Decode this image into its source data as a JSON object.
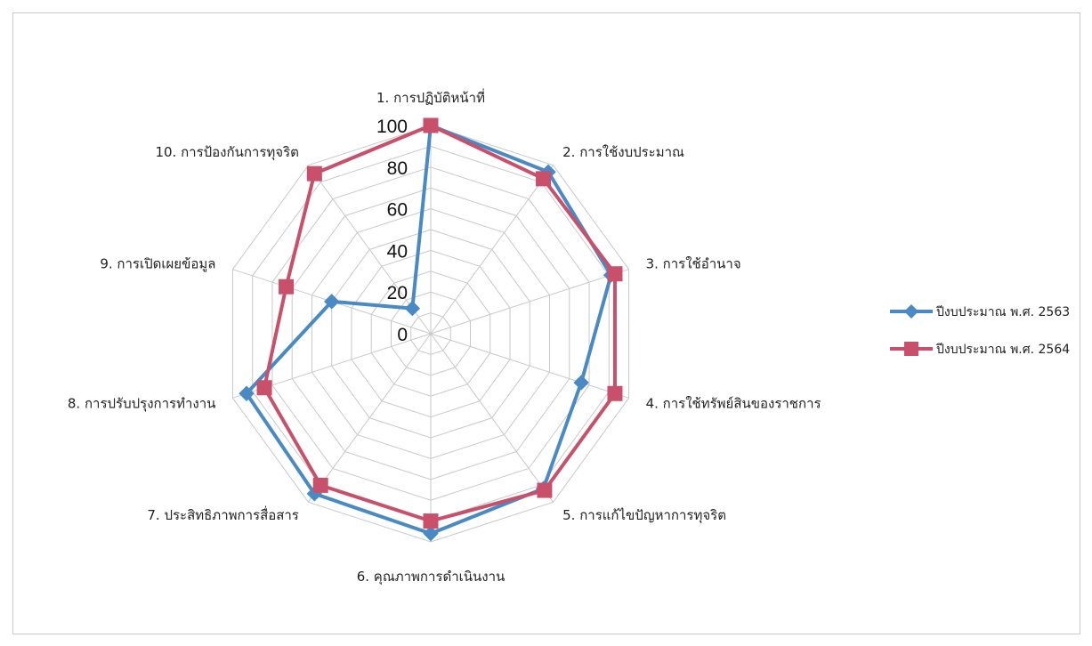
{
  "chart_data": {
    "type": "radar",
    "categories": [
      "1. การปฏิบัติหน้าที่",
      "2. การใช้งบประมาณ",
      "3. การใช้อำนาจ",
      "4. การใช้ทรัพย์สินของราชการ",
      "5. การแก้ไขปัญหาการทุจริต",
      "6. คุณภาพการดำเนินงาน",
      "7. ประสิทธิภาพการสื่อสาร",
      "8. การปรับปรุงการทำงาน",
      "9. การเปิดเผยข้อมูล",
      "10. การป้องกันการทุจริต"
    ],
    "series": [
      {
        "name": "ปีงบประมาณ พ.ศ. 2563",
        "values": [
          100,
          96,
          91,
          76,
          92,
          96,
          95,
          93,
          50,
          15
        ],
        "color": "#4a8ac4",
        "marker": "diamond"
      },
      {
        "name": "ปีงบประมาณ พ.ศ. 2564",
        "values": [
          100,
          92,
          93,
          93,
          93,
          90,
          90,
          84,
          73,
          95
        ],
        "color": "#c9506b",
        "marker": "square"
      }
    ],
    "rlim": [
      0,
      100
    ],
    "ticks": [
      "0",
      "20",
      "40",
      "60",
      "80",
      "100"
    ],
    "grid": true,
    "legend": "right"
  }
}
